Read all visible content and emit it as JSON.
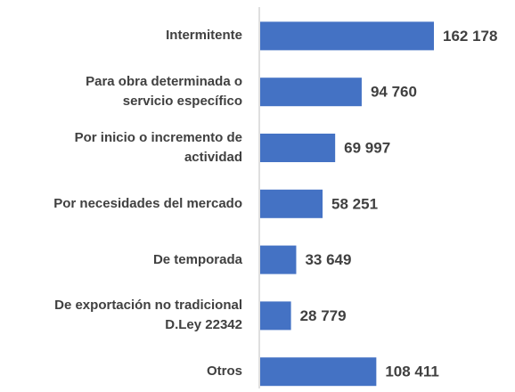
{
  "chart_data": {
    "type": "bar",
    "orientation": "horizontal",
    "categories": [
      "Intermitente",
      "Para obra determinada o\nservicio específico",
      "Por inicio o incremento de\nactividad",
      "Por necesidades del mercado",
      "De temporada",
      "De exportación no tradicional\nD.Ley 22342",
      "Otros"
    ],
    "values": [
      162178,
      94760,
      69997,
      58251,
      33649,
      28779,
      108411
    ],
    "value_labels": [
      "162 178",
      "94 760",
      "69 997",
      "58 251",
      "33 649",
      "28 779",
      "108 411"
    ],
    "color": "#4472c4"
  }
}
